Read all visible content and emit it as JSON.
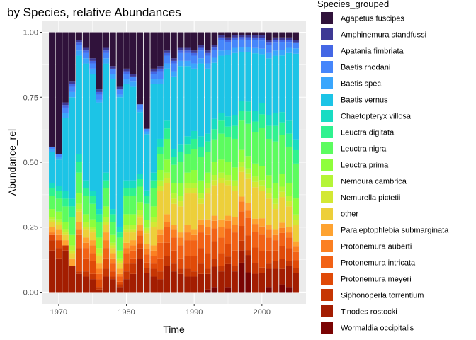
{
  "chart_data": {
    "type": "bar",
    "stacked": true,
    "title": "by Species, relative Abundances",
    "xlabel": "Time",
    "ylabel": "Abundance_rel",
    "xlim": [
      1967.5,
      2006.5
    ],
    "ylim": [
      -0.045,
      1.045
    ],
    "x_ticks": [
      1970,
      1980,
      1990,
      2000
    ],
    "y_ticks": [
      0.0,
      0.25,
      0.5,
      0.75,
      1.0
    ],
    "y_tick_labels": [
      "0.00",
      "0.25",
      "0.50",
      "0.75",
      "1.00"
    ],
    "grid": true,
    "legend_title": "Species_grouped",
    "legend_position": "right",
    "x": [
      1969,
      1970,
      1971,
      1972,
      1973,
      1974,
      1975,
      1976,
      1977,
      1978,
      1979,
      1980,
      1981,
      1982,
      1983,
      1984,
      1985,
      1986,
      1987,
      1988,
      1989,
      1990,
      1991,
      1992,
      1993,
      1994,
      1995,
      1996,
      1997,
      1998,
      1999,
      2000,
      2001,
      2002,
      2003,
      2004,
      2005
    ],
    "series": [
      {
        "name": "Wormaldia occipitalis",
        "color": "#7a0403",
        "values": [
          0,
          0,
          0,
          0,
          0,
          0,
          0,
          0,
          0,
          0,
          0,
          0,
          0,
          0,
          0,
          0,
          0,
          0,
          0,
          0,
          0,
          0,
          0,
          0.01,
          0.02,
          0,
          0.02,
          0,
          0.12,
          0.08,
          0,
          0,
          0.02,
          0,
          0.03,
          0.02,
          0
        ]
      },
      {
        "name": "Tinodes rostocki",
        "color": "#a31d01",
        "values": [
          0.16,
          0.13,
          0.16,
          0.1,
          0.07,
          0.06,
          0.05,
          0.01,
          0.06,
          0.05,
          0.02,
          0.05,
          0.07,
          0.13,
          0.07,
          0.06,
          0.05,
          0.1,
          0.08,
          0.07,
          0.06,
          0.06,
          0.07,
          0.06,
          0.08,
          0.08,
          0.09,
          0.08,
          0.05,
          0.07,
          0.07,
          0.07,
          0.07,
          0.09,
          0.06,
          0.08,
          0.07
        ]
      },
      {
        "name": "Siphonoperla torrentium",
        "color": "#c63603",
        "values": [
          0.04,
          0.04,
          0.02,
          0,
          0.01,
          0.02,
          0.02,
          0.01,
          0.03,
          0.01,
          0.01,
          0.03,
          0.04,
          0.04,
          0.02,
          0.03,
          0.03,
          0.04,
          0.03,
          0.02,
          0.03,
          0.02,
          0.04,
          0.02,
          0.03,
          0.02,
          0.03,
          0.02,
          0.04,
          0.02,
          0.04,
          0.02,
          0.02,
          0.03,
          0.04,
          0.02,
          0.02
        ]
      },
      {
        "name": "Protonemura meyeri",
        "color": "#e04a08",
        "values": [
          0.02,
          0.03,
          0,
          0,
          0.09,
          0.05,
          0.05,
          0.03,
          0.04,
          0.02,
          0.01,
          0.03,
          0.02,
          0.02,
          0.02,
          0.02,
          0.05,
          0.05,
          0.05,
          0.04,
          0.05,
          0.06,
          0.06,
          0.06,
          0.07,
          0.05,
          0.05,
          0.06,
          0.06,
          0.06,
          0.06,
          0.06,
          0.05,
          0.04,
          0.05,
          0.05,
          0.03
        ]
      },
      {
        "name": "Protonemura intricata",
        "color": "#f26216",
        "values": [
          0,
          0,
          0,
          0,
          0.05,
          0.04,
          0.03,
          0.02,
          0.04,
          0.03,
          0.02,
          0.04,
          0.03,
          0.03,
          0.03,
          0.03,
          0.06,
          0.06,
          0.05,
          0.05,
          0.06,
          0.06,
          0.06,
          0.07,
          0.05,
          0.06,
          0.06,
          0.07,
          0.06,
          0.07,
          0.06,
          0.06,
          0.05,
          0.04,
          0.05,
          0.04,
          0.03
        ]
      },
      {
        "name": "Protonemura auberti",
        "color": "#fb8022",
        "values": [
          0.01,
          0.02,
          0,
          0,
          0.02,
          0.02,
          0.03,
          0.02,
          0.03,
          0.02,
          0.01,
          0.02,
          0.02,
          0.02,
          0.02,
          0.02,
          0.03,
          0.02,
          0.03,
          0.03,
          0.03,
          0.02,
          0.03,
          0.03,
          0.03,
          0.04,
          0.03,
          0.03,
          0.04,
          0.03,
          0.03,
          0.03,
          0.03,
          0.02,
          0.02,
          0.02,
          0.02
        ]
      },
      {
        "name": "Paraleptophlebia submarginata",
        "color": "#fea331",
        "values": [
          0.02,
          0.02,
          0.02,
          0.03,
          0.03,
          0.02,
          0.02,
          0.02,
          0.03,
          0.02,
          0.02,
          0.02,
          0.02,
          0.02,
          0.02,
          0.02,
          0.02,
          0.03,
          0.02,
          0.02,
          0.03,
          0.02,
          0.02,
          0.03,
          0.02,
          0.03,
          0.02,
          0.03,
          0.02,
          0.03,
          0.02,
          0.03,
          0.02,
          0.02,
          0.02,
          0.02,
          0.02
        ]
      },
      {
        "name": "other",
        "color": "#edcf3a",
        "values": [
          0.02,
          0.02,
          0.02,
          0.02,
          0.04,
          0.03,
          0.03,
          0.03,
          0.03,
          0.02,
          0.02,
          0.04,
          0.03,
          0.03,
          0.04,
          0.07,
          0.15,
          0.12,
          0.08,
          0.1,
          0.12,
          0.14,
          0.06,
          0.1,
          0.12,
          0.14,
          0.12,
          0.1,
          0.1,
          0.1,
          0.12,
          0.1,
          0.1,
          0.08,
          0.1,
          0.08,
          0.06
        ]
      },
      {
        "name": "Nemurella pictetii",
        "color": "#d3e834",
        "values": [
          0.01,
          0.01,
          0.01,
          0.01,
          0.01,
          0.01,
          0.01,
          0.01,
          0.01,
          0.01,
          0.01,
          0.01,
          0.01,
          0.01,
          0.01,
          0.02,
          0.02,
          0.02,
          0.02,
          0.02,
          0.02,
          0.02,
          0.02,
          0.02,
          0.02,
          0.02,
          0.02,
          0.02,
          0.02,
          0.02,
          0.02,
          0.02,
          0.02,
          0.02,
          0.02,
          0.02,
          0.02
        ]
      },
      {
        "name": "Nemoura cambrica",
        "color": "#b5f537",
        "values": [
          0.01,
          0.01,
          0.01,
          0.02,
          0.02,
          0.02,
          0.01,
          0.02,
          0.02,
          0.01,
          0.01,
          0.02,
          0.02,
          0.02,
          0.01,
          0.02,
          0.02,
          0.02,
          0.02,
          0.02,
          0.02,
          0.02,
          0.02,
          0.02,
          0.02,
          0.02,
          0.02,
          0.02,
          0.02,
          0.02,
          0.02,
          0.02,
          0.02,
          0.02,
          0.02,
          0.02,
          0.02
        ]
      },
      {
        "name": "Leuctra prima",
        "color": "#8efe3b",
        "values": [
          0.03,
          0.03,
          0.03,
          0.04,
          0.04,
          0.03,
          0.03,
          0.04,
          0.04,
          0.03,
          0.03,
          0.04,
          0.04,
          0.03,
          0.03,
          0.04,
          0.04,
          0.05,
          0.04,
          0.05,
          0.04,
          0.05,
          0.05,
          0.04,
          0.05,
          0.05,
          0.05,
          0.05,
          0.05,
          0.05,
          0.05,
          0.05,
          0.05,
          0.06,
          0.05,
          0.05,
          0.06
        ]
      },
      {
        "name": "Leuctra nigra",
        "color": "#5cfc5f",
        "values": [
          0.05,
          0.05,
          0.06,
          0.07,
          0.08,
          0.07,
          0.06,
          0.06,
          0.07,
          0.05,
          0.05,
          0.07,
          0.07,
          0.06,
          0.06,
          0.07,
          0.06,
          0.08,
          0.07,
          0.08,
          0.07,
          0.08,
          0.09,
          0.08,
          0.09,
          0.1,
          0.1,
          0.11,
          0.12,
          0.13,
          0.12,
          0.14,
          0.14,
          0.16,
          0.15,
          0.14,
          0.13
        ]
      },
      {
        "name": "Leuctra digitata",
        "color": "#2ff28f",
        "values": [
          0.03,
          0.03,
          0.03,
          0.04,
          0.04,
          0.03,
          0.03,
          0.03,
          0.03,
          0.03,
          0.02,
          0.03,
          0.03,
          0.03,
          0.03,
          0.03,
          0.03,
          0.04,
          0.03,
          0.04,
          0.04,
          0.04,
          0.04,
          0.04,
          0.04,
          0.05,
          0.04,
          0.05,
          0.04,
          0.05,
          0.04,
          0.05,
          0.05,
          0.06,
          0.05,
          0.05,
          0.05
        ]
      },
      {
        "name": "Chaetopteryx villosa",
        "color": "#18dcc3",
        "values": [
          0.02,
          0.02,
          0.03,
          0.03,
          0.03,
          0.03,
          0.02,
          0.02,
          0.03,
          0.02,
          0.02,
          0.03,
          0.03,
          0.02,
          0.02,
          0.03,
          0.03,
          0.03,
          0.03,
          0.03,
          0.03,
          0.03,
          0.04,
          0.03,
          0.04,
          0.03,
          0.04,
          0.04,
          0.04,
          0.04,
          0.04,
          0.04,
          0.04,
          0.05,
          0.04,
          0.05,
          0.04
        ]
      },
      {
        "name": "Baetis vernus",
        "color": "#1cc4e6",
        "values": [
          0.12,
          0.1,
          0.28,
          0.39,
          0.38,
          0.45,
          0.45,
          0.41,
          0.42,
          0.5,
          0.5,
          0.37,
          0.36,
          0.24,
          0.21,
          0.34,
          0.21,
          0.2,
          0.28,
          0.3,
          0.27,
          0.24,
          0.28,
          0.25,
          0.22,
          0.22,
          0.24,
          0.24,
          0.2,
          0.2,
          0.22,
          0.18,
          0.22,
          0.22,
          0.22,
          0.26,
          0.32
        ]
      },
      {
        "name": "Baetis spec.",
        "color": "#3aa6fd",
        "values": [
          0.01,
          0.01,
          0.02,
          0.02,
          0.02,
          0.02,
          0.02,
          0.01,
          0.02,
          0.02,
          0.01,
          0.02,
          0.02,
          0.01,
          0.01,
          0.02,
          0.02,
          0.02,
          0.02,
          0.02,
          0.02,
          0.02,
          0.02,
          0.02,
          0.02,
          0.02,
          0.02,
          0.02,
          0.02,
          0.02,
          0.02,
          0.02,
          0.02,
          0.02,
          0.02,
          0.02,
          0.02
        ]
      },
      {
        "name": "Baetis rhodani",
        "color": "#4686fb",
        "values": [
          0.01,
          0.01,
          0.02,
          0.02,
          0.02,
          0.02,
          0.02,
          0.02,
          0.02,
          0.02,
          0.02,
          0.02,
          0.02,
          0.02,
          0.01,
          0.02,
          0.03,
          0.03,
          0.03,
          0.03,
          0.03,
          0.03,
          0.03,
          0.03,
          0.03,
          0.04,
          0.03,
          0.03,
          0.03,
          0.03,
          0.03,
          0.03,
          0.03,
          0.03,
          0.03,
          0.02,
          0.02
        ]
      },
      {
        "name": "Apatania fimbriata",
        "color": "#4467e5",
        "values": [
          0,
          0,
          0.01,
          0.01,
          0.01,
          0.01,
          0.01,
          0.01,
          0.01,
          0,
          0,
          0.01,
          0,
          0,
          0,
          0.01,
          0.01,
          0.01,
          0.01,
          0.01,
          0.01,
          0.01,
          0.01,
          0.01,
          0.01,
          0.01,
          0.01,
          0.01,
          0.01,
          0.01,
          0.01,
          0.01,
          0.01,
          0.01,
          0.01,
          0.01,
          0
        ]
      },
      {
        "name": "Amphinemura standfussi",
        "color": "#3e3994",
        "values": [
          0,
          0,
          0.01,
          0.01,
          0.01,
          0.01,
          0.01,
          0.01,
          0.01,
          0.01,
          0.01,
          0.01,
          0.01,
          0,
          0,
          0.01,
          0.01,
          0.01,
          0.01,
          0.01,
          0.01,
          0.01,
          0.01,
          0.01,
          0.01,
          0.01,
          0.01,
          0.01,
          0.01,
          0.01,
          0.01,
          0.01,
          0.01,
          0.01,
          0.01,
          0.01,
          0.01
        ]
      },
      {
        "name": "Agapetus fuscipes",
        "color": "#30123b",
        "values": [
          0.44,
          0.47,
          0.27,
          0.19,
          0.03,
          0.06,
          0.1,
          0.22,
          0.06,
          0.13,
          0.21,
          0.14,
          0.16,
          0.28,
          0.36,
          0.14,
          0.13,
          0.07,
          0.1,
          0.06,
          0.06,
          0.07,
          0.05,
          0.07,
          0.05,
          0.01,
          0.02,
          0.01,
          0.01,
          0.01,
          0.01,
          0.01,
          0.03,
          0.02,
          0.02,
          0.02,
          0.03
        ]
      }
    ]
  }
}
